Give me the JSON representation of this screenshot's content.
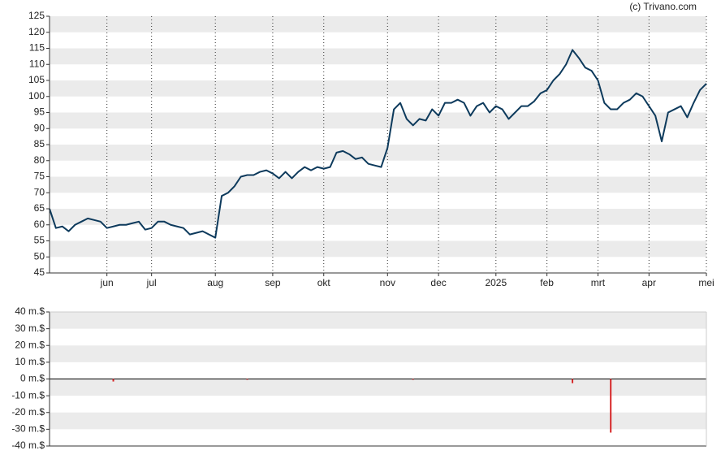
{
  "source": "(c) Trivano.com",
  "chart_data": [
    {
      "type": "line",
      "color": "#0d3a5c",
      "categories": [
        null,
        null,
        null,
        null,
        null,
        null,
        null,
        null,
        null,
        "jun",
        null,
        null,
        null,
        null,
        null,
        null,
        "jul",
        null,
        null,
        null,
        null,
        null,
        null,
        null,
        null,
        null,
        "aug",
        null,
        null,
        null,
        null,
        null,
        null,
        null,
        null,
        "sep",
        null,
        null,
        null,
        null,
        null,
        null,
        null,
        "okt",
        null,
        null,
        null,
        null,
        null,
        null,
        null,
        null,
        null,
        "nov",
        null,
        null,
        null,
        null,
        null,
        null,
        null,
        "dec",
        null,
        null,
        null,
        null,
        null,
        null,
        null,
        null,
        "2025",
        null,
        null,
        null,
        null,
        null,
        null,
        null,
        "feb",
        null,
        null,
        null,
        null,
        null,
        null,
        null,
        "mrt",
        null,
        null,
        null,
        null,
        null,
        null,
        null,
        "apr",
        null,
        null,
        null,
        null,
        null,
        null,
        null,
        null,
        "mei"
      ],
      "values": [
        65,
        59,
        59.5,
        58,
        60,
        61,
        62,
        61.5,
        61,
        59,
        59.5,
        60,
        60,
        60.5,
        61,
        58.5,
        59,
        61,
        61,
        60,
        59.5,
        59,
        57,
        57.5,
        58,
        57,
        56,
        69,
        70,
        72,
        75,
        75.5,
        75.5,
        76.5,
        77,
        76,
        74.5,
        76.5,
        74.5,
        76.5,
        78,
        77,
        78,
        77.5,
        78,
        82.5,
        83,
        82,
        80.5,
        81,
        79,
        78.5,
        78,
        84,
        96,
        98,
        93,
        91,
        93,
        92.5,
        96,
        94,
        98,
        98,
        99,
        98,
        94,
        97,
        98,
        95,
        97,
        96,
        93,
        95,
        97,
        97,
        98.5,
        101,
        102,
        105,
        107,
        110,
        114.5,
        112,
        109,
        108,
        105,
        98,
        96,
        96,
        98,
        99,
        101,
        100,
        97,
        94,
        86,
        95,
        96,
        97,
        93.5,
        98,
        102,
        104
      ],
      "ylim": [
        45,
        125
      ],
      "yticks": [
        45,
        50,
        55,
        60,
        65,
        70,
        75,
        80,
        85,
        90,
        95,
        100,
        105,
        110,
        115,
        120,
        125
      ],
      "grid": true
    },
    {
      "type": "bar",
      "color": "#d62728",
      "values": [
        null,
        null,
        null,
        null,
        null,
        null,
        null,
        null,
        null,
        null,
        -1.5,
        null,
        null,
        null,
        null,
        null,
        null,
        null,
        null,
        null,
        null,
        null,
        null,
        null,
        null,
        null,
        null,
        null,
        null,
        null,
        null,
        -0.3,
        null,
        null,
        null,
        null,
        null,
        null,
        null,
        null,
        null,
        null,
        null,
        null,
        null,
        null,
        null,
        null,
        null,
        null,
        null,
        null,
        null,
        null,
        null,
        null,
        null,
        -0.3,
        null,
        null,
        null,
        null,
        null,
        null,
        null,
        null,
        null,
        null,
        null,
        null,
        null,
        null,
        null,
        null,
        null,
        null,
        null,
        null,
        null,
        null,
        null,
        null,
        -2.5,
        null,
        null,
        null,
        null,
        null,
        -32,
        null,
        null,
        null,
        null,
        null,
        null,
        null,
        null,
        null,
        null,
        null,
        null,
        null,
        null,
        null
      ],
      "ylim": [
        -40,
        40
      ],
      "yticks": [
        {
          "value": -40,
          "label": "-40 m.$"
        },
        {
          "value": -30,
          "label": "-30 m.$"
        },
        {
          "value": -20,
          "label": "-20 m.$"
        },
        {
          "value": -10,
          "label": "-10 m.$"
        },
        {
          "value": 0,
          "label": "0 m.$"
        },
        {
          "value": 10,
          "label": "10 m.$"
        },
        {
          "value": 20,
          "label": "20 m.$"
        },
        {
          "value": 30,
          "label": "30 m.$"
        },
        {
          "value": 40,
          "label": "40 m.$"
        }
      ],
      "grid": true
    }
  ]
}
